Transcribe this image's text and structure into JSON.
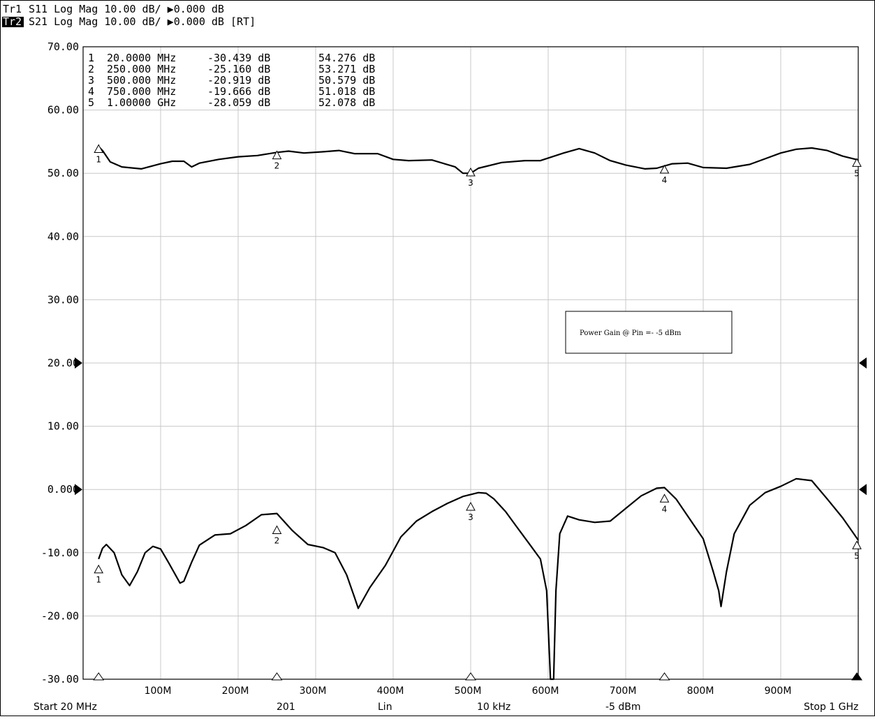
{
  "header": {
    "trace1": {
      "label": "Tr1",
      "text": "S11 Log Mag 10.00 dB/ ▶0.000 dB"
    },
    "trace2": {
      "label": "Tr2",
      "text": "S21 Log Mag 10.00 dB/ ▶0.000 dB [RT]"
    }
  },
  "marker_table": [
    {
      "num": "1",
      "freq": "20.0000 MHz",
      "s11": "-30.439 dB",
      "s21": "54.276 dB"
    },
    {
      "num": "2",
      "freq": "250.000 MHz",
      "s11": "-25.160 dB",
      "s21": "53.271 dB"
    },
    {
      "num": "3",
      "freq": "500.000 MHz",
      "s11": "-20.919 dB",
      "s21": "50.579 dB"
    },
    {
      "num": "4",
      "freq": "750.000 MHz",
      "s11": "-19.666 dB",
      "s21": "51.018 dB"
    },
    {
      "num": "5",
      "freq": "1.00000 GHz",
      "s11": "-28.059 dB",
      "s21": "52.078 dB"
    }
  ],
  "annotation": "Power Gain @ Pin =- -5 dBm",
  "footer": {
    "start": "Start 20 MHz",
    "points": "201",
    "sweep": "Lin",
    "ifbw": "10 kHz",
    "power": "-5 dBm",
    "stop": "Stop 1 GHz"
  },
  "chart_data": {
    "type": "line",
    "xlim": [
      0,
      1000
    ],
    "ylim": [
      -30,
      70
    ],
    "x_unit": "MHz",
    "y_unit": "dB",
    "yticks": [
      "70.00",
      "60.00",
      "50.00",
      "40.00",
      "30.00",
      "20.00",
      "10.00",
      "0.000",
      "-10.00",
      "-20.00",
      "-30.00"
    ],
    "xticks": [
      {
        "v": 100,
        "label": "100M"
      },
      {
        "v": 200,
        "label": "200M"
      },
      {
        "v": 300,
        "label": "300M"
      },
      {
        "v": 400,
        "label": "400M"
      },
      {
        "v": 500,
        "label": "500M"
      },
      {
        "v": 600,
        "label": "600M"
      },
      {
        "v": 700,
        "label": "700M"
      },
      {
        "v": 800,
        "label": "800M"
      },
      {
        "v": 900,
        "label": "900M"
      }
    ],
    "grid": true,
    "series": [
      {
        "name": "S21",
        "color": "#000000",
        "x": [
          20,
          25,
          35,
          50,
          75,
          100,
          115,
          130,
          140,
          150,
          175,
          200,
          225,
          250,
          265,
          285,
          310,
          330,
          350,
          380,
          400,
          420,
          450,
          480,
          490,
          500,
          510,
          540,
          570,
          590,
          620,
          640,
          660,
          680,
          700,
          725,
          740,
          760,
          780,
          800,
          830,
          860,
          880,
          900,
          920,
          940,
          960,
          980,
          1000
        ],
        "y": [
          54.2,
          53.6,
          51.8,
          51.0,
          50.7,
          51.5,
          51.9,
          51.9,
          51.0,
          51.6,
          52.2,
          52.6,
          52.8,
          53.3,
          53.5,
          53.2,
          53.4,
          53.6,
          53.1,
          53.1,
          52.2,
          52.0,
          52.1,
          51.0,
          50.0,
          50.0,
          50.8,
          51.7,
          52.0,
          52.0,
          53.2,
          53.9,
          53.2,
          52.0,
          51.3,
          50.7,
          50.8,
          51.5,
          51.6,
          50.9,
          50.8,
          51.4,
          52.3,
          53.2,
          53.8,
          54.0,
          53.6,
          52.7,
          52.1
        ]
      },
      {
        "name": "S11",
        "color": "#000000",
        "x": [
          20,
          25,
          30,
          40,
          50,
          60,
          70,
          80,
          90,
          100,
          110,
          125,
          130,
          140,
          150,
          170,
          190,
          210,
          230,
          250,
          270,
          290,
          310,
          325,
          340,
          350,
          355,
          370,
          390,
          410,
          430,
          450,
          470,
          490,
          500,
          510,
          520,
          530,
          545,
          560,
          575,
          590,
          598,
          603,
          607,
          610,
          615,
          625,
          640,
          660,
          680,
          700,
          720,
          740,
          750,
          765,
          780,
          800,
          813,
          820,
          823,
          830,
          840,
          860,
          880,
          900,
          920,
          940,
          960,
          980,
          1000
        ],
        "y": [
          -11.0,
          -9.3,
          -8.7,
          -10.0,
          -13.5,
          -15.2,
          -13.0,
          -10.0,
          -9.0,
          -9.4,
          -11.5,
          -14.8,
          -14.5,
          -11.5,
          -8.8,
          -7.2,
          -7.0,
          -5.7,
          -4.0,
          -3.8,
          -6.5,
          -8.7,
          -9.2,
          -10.0,
          -13.5,
          -17.0,
          -18.8,
          -15.5,
          -12.0,
          -7.5,
          -5.0,
          -3.5,
          -2.2,
          -1.1,
          -0.8,
          -0.5,
          -0.6,
          -1.5,
          -3.5,
          -6.0,
          -8.5,
          -11.0,
          -16.0,
          -30.0,
          -30.0,
          -16.0,
          -7.0,
          -4.2,
          -4.8,
          -5.2,
          -5.0,
          -3.0,
          -1.0,
          0.2,
          0.3,
          -1.5,
          -4.2,
          -7.8,
          -13.0,
          -16.0,
          -18.5,
          -13.0,
          -7.0,
          -2.5,
          -0.5,
          0.5,
          1.7,
          1.4,
          -1.5,
          -4.5,
          -8.0
        ]
      }
    ],
    "markers": [
      {
        "num": "1",
        "x": 20,
        "s21": 54.276,
        "s11": -12.2,
        "s11_dir": "down"
      },
      {
        "num": "2",
        "x": 250,
        "s21": 53.271,
        "s11": -6.0,
        "s11_dir": "down"
      },
      {
        "num": "3",
        "x": 500,
        "s21": 50.579,
        "s11": -2.3,
        "s11_dir": "down"
      },
      {
        "num": "4",
        "x": 750,
        "s21": 51.018,
        "s11": -1.0,
        "s11_dir": "down"
      },
      {
        "num": "5",
        "x": 1000,
        "s21": 52.078,
        "s11": -8.4,
        "s11_dir": "both"
      }
    ],
    "ref_arrows": [
      20,
      0
    ]
  }
}
